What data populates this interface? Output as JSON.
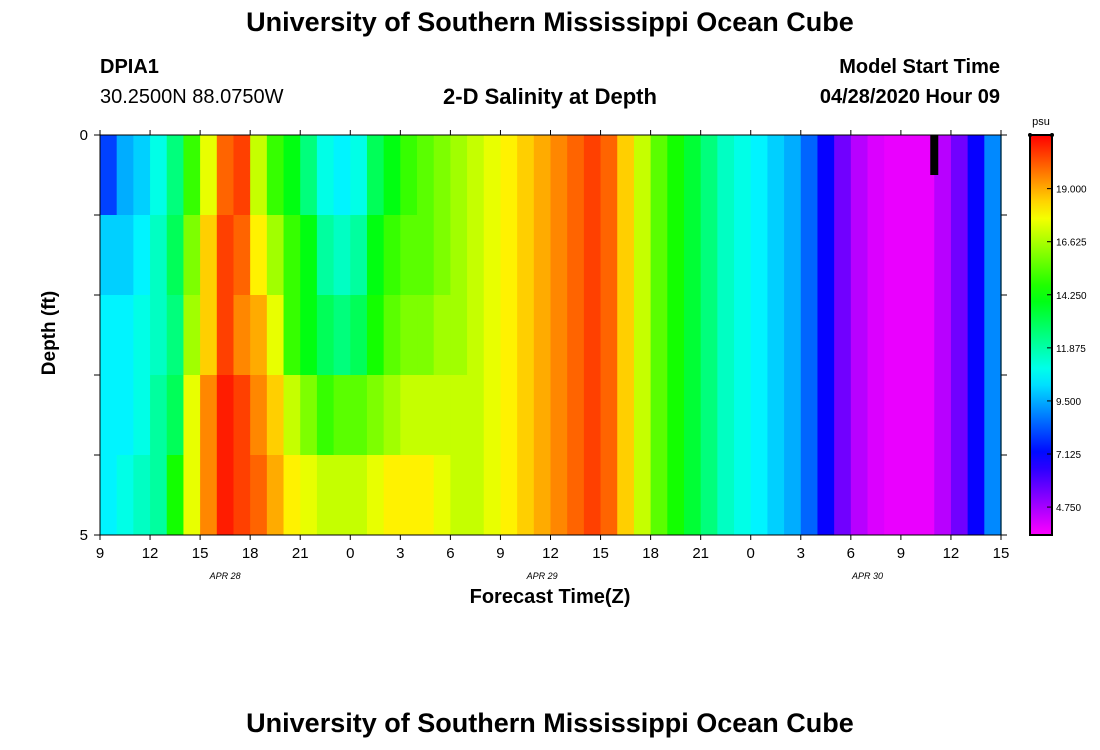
{
  "header": {
    "title": "University of Southern Mississippi Ocean Cube",
    "station": "DPIA1",
    "location": "30.2500N 88.0750W",
    "plot_title": "2-D Salinity at Depth",
    "model_start_label": "Model Start Time",
    "model_start_value": "04/28/2020 Hour 09"
  },
  "footer": {
    "title": "University of Southern Mississippi Ocean Cube"
  },
  "chart_data": {
    "type": "heatmap",
    "title": "2-D Salinity at Depth",
    "xlabel": "Forecast Time(Z)",
    "ylabel": "Depth (ft)",
    "x_unit": "hours since 04/28 09Z",
    "x_range": [
      0,
      54
    ],
    "x_tick_values": [
      0,
      3,
      6,
      9,
      12,
      15,
      18,
      21,
      24,
      27,
      30,
      33,
      36,
      39,
      42,
      45,
      48,
      51,
      54
    ],
    "x_tick_labels": [
      "9",
      "12",
      "15",
      "18",
      "21",
      "0",
      "3",
      "6",
      "9",
      "12",
      "15",
      "18",
      "21",
      "0",
      "3",
      "6",
      "9",
      "12",
      "15"
    ],
    "date_labels": [
      {
        "text": "APR 28",
        "x": 7.5
      },
      {
        "text": "APR 29",
        "x": 26.5
      },
      {
        "text": "APR 30",
        "x": 46
      }
    ],
    "y_range": [
      0,
      5
    ],
    "y_tick_labels": [
      "0",
      "5"
    ],
    "depth_layers": 5,
    "colorbar": {
      "unit": "psu",
      "min": 3.5,
      "max": 21.4,
      "ticks": [
        "19.000",
        "16.625",
        "14.250",
        "11.875",
        "9.500",
        "7.125",
        "4.750"
      ],
      "tick_values": [
        19.0,
        16.625,
        14.25,
        11.875,
        9.5,
        7.125,
        4.75
      ]
    },
    "salinity_profile": [
      {
        "hour": 0,
        "values": [
          8.0,
          10.0,
          10.5,
          10.5,
          10.5
        ]
      },
      {
        "hour": 1,
        "values": [
          9.5,
          10.0,
          10.5,
          10.5,
          11.0
        ]
      },
      {
        "hour": 2,
        "values": [
          10.0,
          10.5,
          11.0,
          11.0,
          11.5
        ]
      },
      {
        "hour": 3,
        "values": [
          11.0,
          11.5,
          11.5,
          12.0,
          12.0
        ]
      },
      {
        "hour": 4,
        "values": [
          12.5,
          13.0,
          12.5,
          13.0,
          14.5
        ]
      },
      {
        "hour": 5,
        "values": [
          15.0,
          16.0,
          16.5,
          17.5,
          17.5
        ]
      },
      {
        "hour": 6,
        "values": [
          17.5,
          18.5,
          18.5,
          19.5,
          19.5
        ]
      },
      {
        "hour": 7,
        "values": [
          20.0,
          20.5,
          20.5,
          21.0,
          21.0
        ]
      },
      {
        "hour": 8,
        "values": [
          20.5,
          20.0,
          19.5,
          20.5,
          20.5
        ]
      },
      {
        "hour": 9,
        "values": [
          17.0,
          18.0,
          19.0,
          19.5,
          20.0
        ]
      },
      {
        "hour": 10,
        "values": [
          15.0,
          16.5,
          17.5,
          18.5,
          19.0
        ]
      },
      {
        "hour": 11,
        "values": [
          14.0,
          15.0,
          15.0,
          17.0,
          18.0
        ]
      },
      {
        "hour": 12,
        "values": [
          12.5,
          14.0,
          14.0,
          16.0,
          17.5
        ]
      },
      {
        "hour": 13,
        "values": [
          11.0,
          12.0,
          13.0,
          15.0,
          17.0
        ]
      },
      {
        "hour": 14,
        "values": [
          10.5,
          11.5,
          12.5,
          15.5,
          17.0
        ]
      },
      {
        "hour": 15,
        "values": [
          11.0,
          12.0,
          13.0,
          15.5,
          17.0
        ]
      },
      {
        "hour": 16,
        "values": [
          13.0,
          14.0,
          14.5,
          16.0,
          17.5
        ]
      },
      {
        "hour": 17,
        "values": [
          14.0,
          15.0,
          15.5,
          16.5,
          18.0
        ]
      },
      {
        "hour": 18,
        "values": [
          15.0,
          15.5,
          16.0,
          17.0,
          18.0
        ]
      },
      {
        "hour": 19,
        "values": [
          15.5,
          15.5,
          16.0,
          17.0,
          18.0
        ]
      },
      {
        "hour": 20,
        "values": [
          16.0,
          16.0,
          16.5,
          17.0,
          17.5
        ]
      },
      {
        "hour": 21,
        "values": [
          16.5,
          16.5,
          16.5,
          17.0,
          17.0
        ]
      },
      {
        "hour": 22,
        "values": [
          17.0,
          17.0,
          17.0,
          17.0,
          17.0
        ]
      },
      {
        "hour": 23,
        "values": [
          17.5,
          17.5,
          17.5,
          17.5,
          17.5
        ]
      },
      {
        "hour": 24,
        "values": [
          18.0,
          18.0,
          18.0,
          18.0,
          18.0
        ]
      },
      {
        "hour": 25,
        "values": [
          18.5,
          18.5,
          18.5,
          18.5,
          18.5
        ]
      },
      {
        "hour": 26,
        "values": [
          19.0,
          19.0,
          19.0,
          19.0,
          19.0
        ]
      },
      {
        "hour": 27,
        "values": [
          19.5,
          19.5,
          19.5,
          19.5,
          19.5
        ]
      },
      {
        "hour": 28,
        "values": [
          20.0,
          20.0,
          20.0,
          20.0,
          20.0
        ]
      },
      {
        "hour": 29,
        "values": [
          20.5,
          20.5,
          20.5,
          20.5,
          20.5
        ]
      },
      {
        "hour": 30,
        "values": [
          20.0,
          20.0,
          20.0,
          20.0,
          20.0
        ]
      },
      {
        "hour": 31,
        "values": [
          18.5,
          18.5,
          18.5,
          18.5,
          18.5
        ]
      },
      {
        "hour": 32,
        "values": [
          17.0,
          17.0,
          17.0,
          17.0,
          17.0
        ]
      },
      {
        "hour": 33,
        "values": [
          15.5,
          15.5,
          15.5,
          15.5,
          15.5
        ]
      },
      {
        "hour": 34,
        "values": [
          14.5,
          14.5,
          14.5,
          14.5,
          14.5
        ]
      },
      {
        "hour": 35,
        "values": [
          13.5,
          13.5,
          13.5,
          13.5,
          13.5
        ]
      },
      {
        "hour": 36,
        "values": [
          12.5,
          12.5,
          12.5,
          12.5,
          12.5
        ]
      },
      {
        "hour": 37,
        "values": [
          11.5,
          11.5,
          11.5,
          11.5,
          11.5
        ]
      },
      {
        "hour": 38,
        "values": [
          11.0,
          11.0,
          11.0,
          11.0,
          11.0
        ]
      },
      {
        "hour": 39,
        "values": [
          10.5,
          10.5,
          10.5,
          10.5,
          10.5
        ]
      },
      {
        "hour": 40,
        "values": [
          10.0,
          10.0,
          10.0,
          10.0,
          10.0
        ]
      },
      {
        "hour": 41,
        "values": [
          9.5,
          9.5,
          9.5,
          9.5,
          9.5
        ]
      },
      {
        "hour": 42,
        "values": [
          8.5,
          8.5,
          8.5,
          8.5,
          8.5
        ]
      },
      {
        "hour": 43,
        "values": [
          7.0,
          7.0,
          7.0,
          7.0,
          7.0
        ]
      },
      {
        "hour": 44,
        "values": [
          5.5,
          5.5,
          5.5,
          5.5,
          5.5
        ]
      },
      {
        "hour": 45,
        "values": [
          4.5,
          4.5,
          4.5,
          4.5,
          4.5
        ]
      },
      {
        "hour": 46,
        "values": [
          4.0,
          4.0,
          4.0,
          4.0,
          4.0
        ]
      },
      {
        "hour": 47,
        "values": [
          3.8,
          3.8,
          3.8,
          3.8,
          3.8
        ]
      },
      {
        "hour": 48,
        "values": [
          3.8,
          3.8,
          3.8,
          3.8,
          3.8
        ]
      },
      {
        "hour": 49,
        "values": [
          3.8,
          3.8,
          3.8,
          3.8,
          3.8
        ]
      },
      {
        "hour": 50,
        "values": [
          4.5,
          4.5,
          4.5,
          4.5,
          4.5
        ]
      },
      {
        "hour": 51,
        "values": [
          5.5,
          5.5,
          5.5,
          5.5,
          5.5
        ]
      },
      {
        "hour": 52,
        "values": [
          7.0,
          7.0,
          7.0,
          7.0,
          7.0
        ]
      },
      {
        "hour": 53,
        "values": [
          9.0,
          9.0,
          9.0,
          9.0,
          9.0
        ]
      },
      {
        "hour": 54,
        "values": [
          10.5,
          10.5,
          10.5,
          10.5,
          10.5
        ]
      }
    ],
    "current_time_marker": {
      "hour": 50,
      "depth_range": [
        0,
        0.5
      ]
    }
  }
}
